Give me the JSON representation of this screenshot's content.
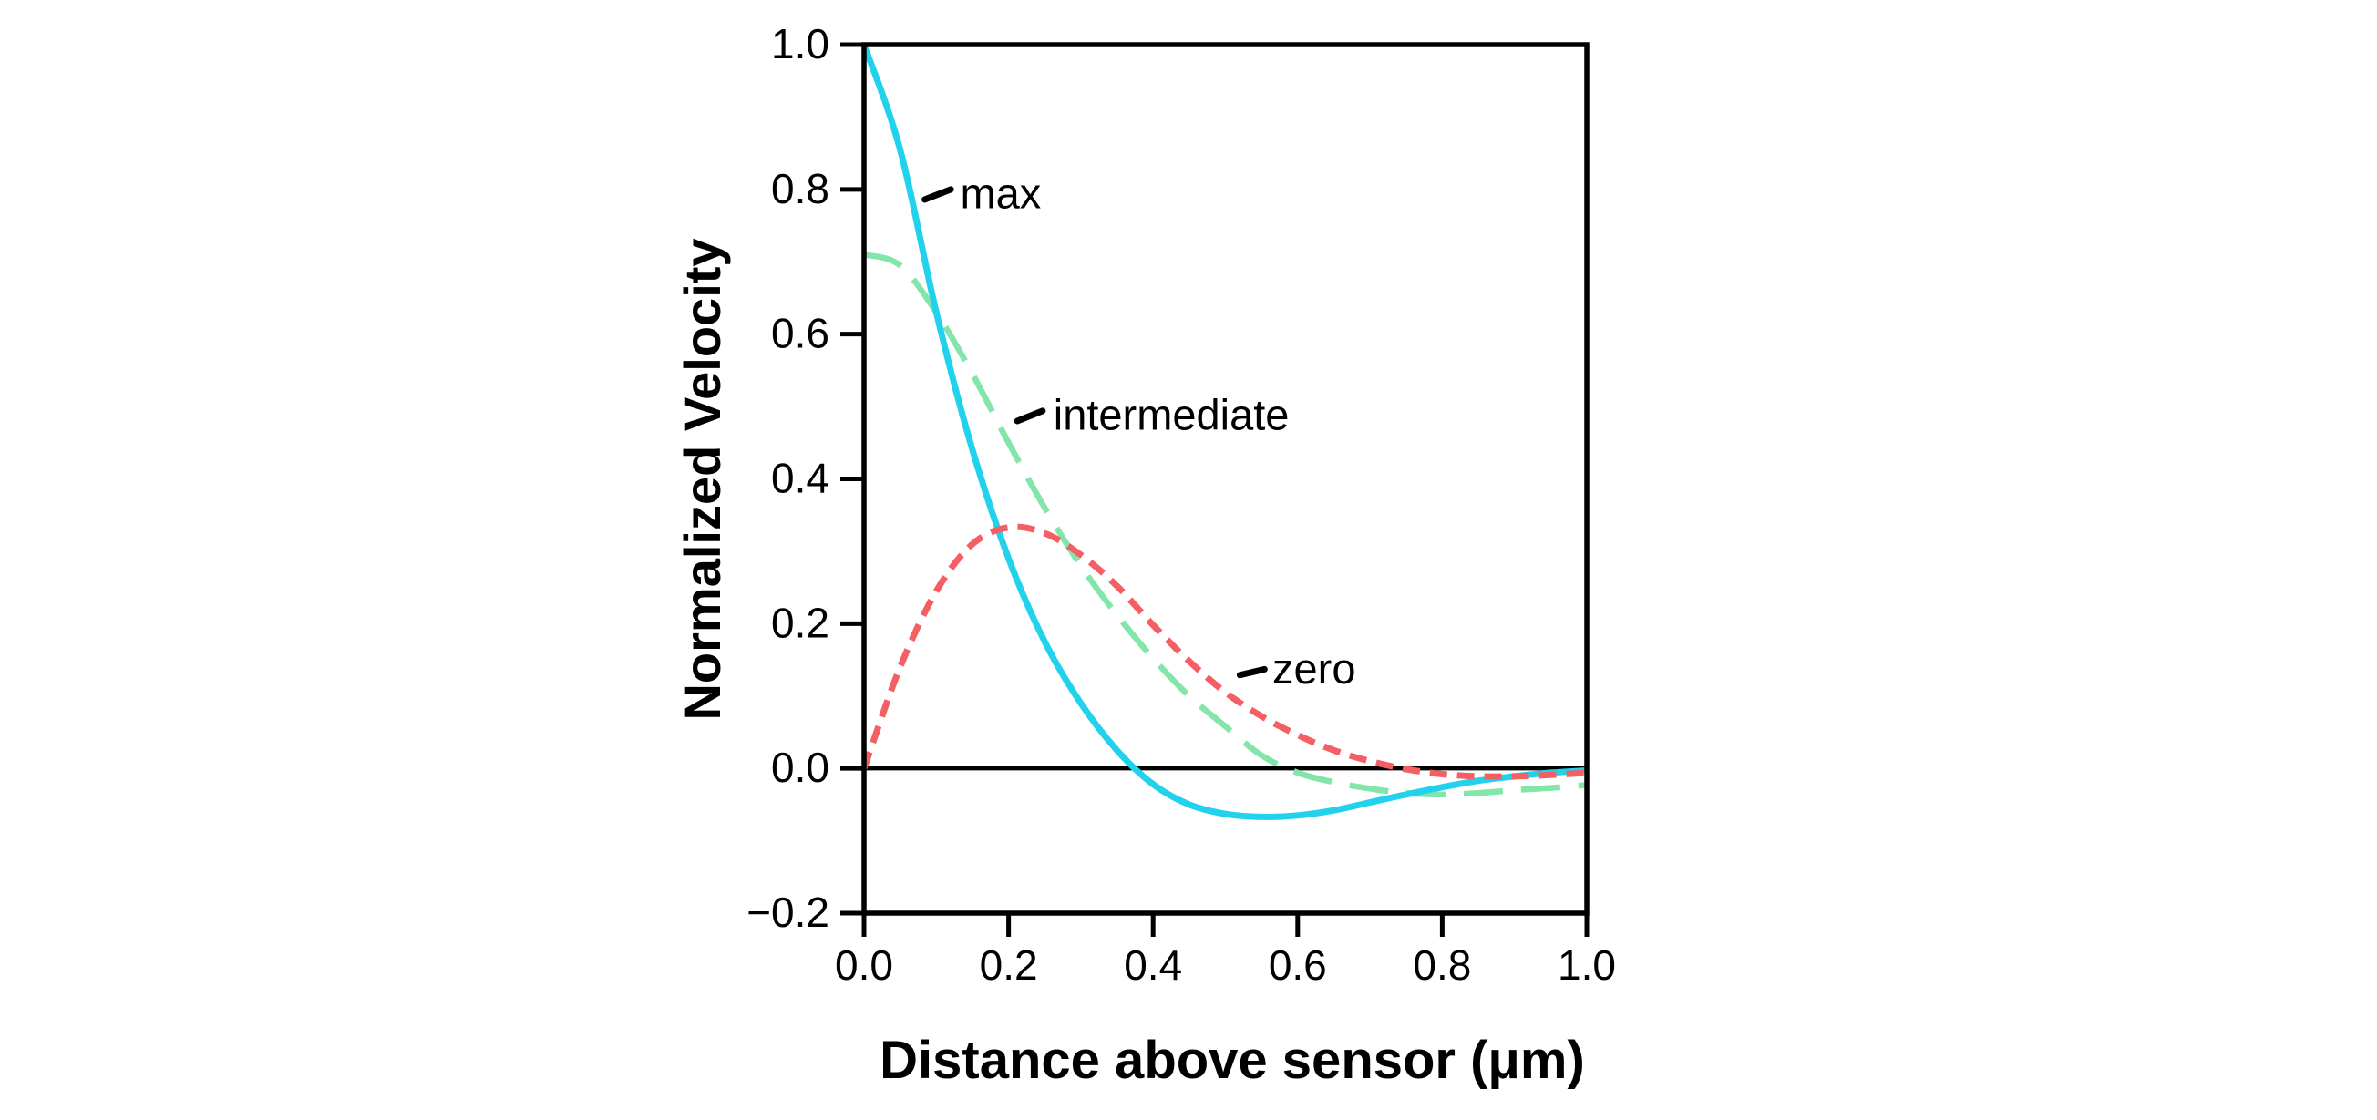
{
  "figure": {
    "background": "#ffffff",
    "frame_color": "#000000",
    "text_color": "#000000"
  },
  "chart_data": {
    "type": "line",
    "title": "",
    "xlabel": "Distance above sensor (μm)",
    "ylabel": "Normalized Velocity",
    "xlim": [
      0.0,
      1.0
    ],
    "ylim": [
      -0.2,
      1.0
    ],
    "grid": false,
    "legend": "inline-annotations",
    "xticks": {
      "values": [
        0.0,
        0.2,
        0.4,
        0.6,
        0.8,
        1.0
      ],
      "labels": [
        "0.0",
        "0.2",
        "0.4",
        "0.6",
        "0.8",
        "1.0"
      ]
    },
    "yticks": {
      "values": [
        -0.2,
        0.0,
        0.2,
        0.4,
        0.6,
        0.8,
        1.0
      ],
      "labels": [
        "−0.2",
        "0.0",
        "0.2",
        "0.4",
        "0.6",
        "0.8",
        "1.0"
      ]
    },
    "zero_line": {
      "show": true,
      "y": 0.0,
      "color": "#000000",
      "width": 4.5
    },
    "x": [
      0.0,
      0.05,
      0.1,
      0.15,
      0.2,
      0.25,
      0.3,
      0.35,
      0.4,
      0.45,
      0.5,
      0.55,
      0.6,
      0.65,
      0.7,
      0.75,
      0.8,
      0.85,
      0.9,
      0.95,
      1.0
    ],
    "series": [
      {
        "name": "intermediate",
        "color": "#84e5ab",
        "style": "long-dash",
        "dash": [
          43,
          20
        ],
        "width": 6.5,
        "values": [
          0.71,
          0.695,
          0.63,
          0.545,
          0.45,
          0.36,
          0.28,
          0.212,
          0.152,
          0.1,
          0.058,
          0.018,
          -0.006,
          -0.019,
          -0.028,
          -0.034,
          -0.036,
          -0.034,
          -0.03,
          -0.027,
          -0.023
        ]
      },
      {
        "name": "max",
        "color": "#22d2ec",
        "style": "solid",
        "dash": null,
        "width": 7,
        "values": [
          1.0,
          0.855,
          0.63,
          0.44,
          0.29,
          0.175,
          0.09,
          0.025,
          -0.022,
          -0.05,
          -0.063,
          -0.067,
          -0.065,
          -0.058,
          -0.047,
          -0.036,
          -0.026,
          -0.017,
          -0.011,
          -0.006,
          -0.003
        ]
      },
      {
        "name": "zero",
        "color": "#f45f64",
        "style": "short-dash",
        "dash": [
          19,
          11
        ],
        "width": 7,
        "values": [
          0.0,
          0.14,
          0.245,
          0.31,
          0.333,
          0.325,
          0.295,
          0.252,
          0.198,
          0.148,
          0.105,
          0.072,
          0.046,
          0.025,
          0.01,
          -0.001,
          -0.008,
          -0.011,
          -0.011,
          -0.009,
          -0.006
        ]
      }
    ],
    "annotations": [
      {
        "text": "max",
        "label_x": 0.133,
        "label_y": 0.795,
        "pointer": [
          0.084,
          0.786,
          0.12,
          0.8
        ]
      },
      {
        "text": "intermediate",
        "label_x": 0.262,
        "label_y": 0.489,
        "pointer": [
          0.212,
          0.48,
          0.247,
          0.494
        ]
      },
      {
        "text": "zero",
        "label_x": 0.565,
        "label_y": 0.138,
        "pointer": [
          0.52,
          0.129,
          0.554,
          0.137
        ]
      }
    ]
  }
}
